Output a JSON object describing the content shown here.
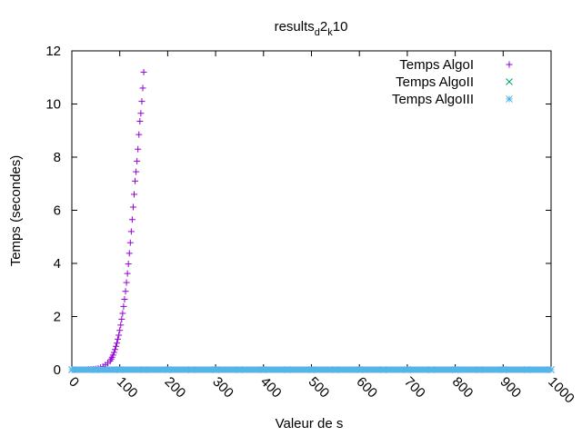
{
  "chart_data": {
    "type": "scatter",
    "title": {
      "base": "results",
      "sub1": "d",
      "mid": "2",
      "sub2": "k",
      "end": "10"
    },
    "xlabel": "Valeur de s",
    "ylabel": "Temps (secondes)",
    "xlim": [
      0,
      1000
    ],
    "ylim": [
      0,
      12
    ],
    "xticks": [
      0,
      100,
      200,
      300,
      400,
      500,
      600,
      700,
      800,
      900,
      1000
    ],
    "yticks": [
      0,
      2,
      4,
      6,
      8,
      10,
      12
    ],
    "grid": false,
    "legend_position": "top-right",
    "series": [
      {
        "name": "Temps AlgoI",
        "marker": "plus",
        "color": "#9400d3",
        "x": [
          2,
          5,
          10,
          15,
          20,
          25,
          30,
          35,
          40,
          45,
          50,
          55,
          60,
          65,
          70,
          75,
          80,
          82,
          84,
          86,
          88,
          90,
          92,
          94,
          96,
          98,
          100,
          102,
          104,
          106,
          108,
          110,
          112,
          114,
          116,
          118,
          120,
          122,
          124,
          126,
          128,
          130,
          132,
          134,
          136,
          138,
          140,
          142,
          144,
          146,
          148,
          150
        ],
        "y": [
          0,
          0,
          0,
          0,
          0,
          0,
          0,
          0.01,
          0.01,
          0.02,
          0.03,
          0.05,
          0.08,
          0.12,
          0.18,
          0.25,
          0.33,
          0.4,
          0.47,
          0.55,
          0.65,
          0.76,
          0.88,
          1.0,
          1.15,
          1.3,
          1.48,
          1.68,
          1.9,
          2.12,
          2.38,
          2.65,
          2.95,
          3.28,
          3.62,
          3.98,
          4.38,
          4.78,
          5.2,
          5.65,
          6.12,
          6.6,
          7.1,
          7.45,
          7.85,
          8.3,
          8.85,
          9.35,
          9.65,
          10.1,
          10.6,
          11.2
        ]
      },
      {
        "name": "Temps AlgoII",
        "marker": "cross",
        "color": "#009e73",
        "x": [
          0,
          50,
          100,
          150,
          200,
          250,
          300,
          350,
          400,
          450,
          500,
          550,
          600,
          650,
          700,
          750,
          800,
          850,
          900,
          950,
          1000
        ],
        "y": [
          0,
          0,
          0,
          0,
          0,
          0,
          0,
          0,
          0,
          0,
          0,
          0,
          0,
          0,
          0,
          0,
          0,
          0,
          0,
          0,
          0
        ]
      },
      {
        "name": "Temps AlgoIII",
        "marker": "star",
        "color": "#56b4e9",
        "x": [
          0,
          50,
          100,
          150,
          200,
          250,
          300,
          350,
          400,
          450,
          500,
          550,
          600,
          650,
          700,
          750,
          800,
          850,
          900,
          950,
          1000
        ],
        "y": [
          0,
          0,
          0,
          0,
          0,
          0,
          0,
          0,
          0,
          0,
          0,
          0,
          0,
          0,
          0,
          0,
          0,
          0,
          0,
          0,
          0
        ]
      }
    ]
  }
}
